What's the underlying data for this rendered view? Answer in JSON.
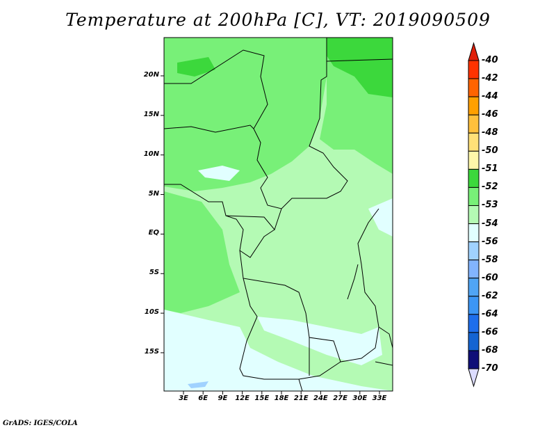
{
  "title": "Temperature at 200hPa [C], VT: 2019090509",
  "credit": "GrADS: IGES/COLA",
  "lat_ticks": [
    "20N",
    "15N",
    "10N",
    "5N",
    "EQ",
    "5S",
    "10S",
    "15S"
  ],
  "lon_ticks": [
    "3E",
    "6E",
    "9E",
    "12E",
    "15E",
    "18E",
    "21E",
    "24E",
    "27E",
    "30E",
    "33E"
  ],
  "colorbar": {
    "labels": [
      "-40",
      "-42",
      "-44",
      "-46",
      "-48",
      "-50",
      "-51",
      "-52",
      "-53",
      "-54",
      "-56",
      "-58",
      "-60",
      "-62",
      "-64",
      "-66",
      "-68",
      "-70"
    ],
    "above_color": "#e0200a",
    "below_color": "#dcdcff",
    "colors": [
      "#ff3300",
      "#ff6400",
      "#ffa000",
      "#ffc03c",
      "#ffe078",
      "#fff8aa",
      "#3cd83c",
      "#78f078",
      "#b4fab4",
      "#e1ffff",
      "#a0d2ff",
      "#82b4ff",
      "#50a5f5",
      "#3c96f5",
      "#1e6eeb",
      "#1464d2",
      "#0f0f78"
    ]
  },
  "colors": {
    "light_green": "#b4fab4",
    "mid_green": "#78f078",
    "dark_green": "#3cd83c",
    "cyan": "#e1ffff",
    "light_blue": "#a0d2ff"
  }
}
